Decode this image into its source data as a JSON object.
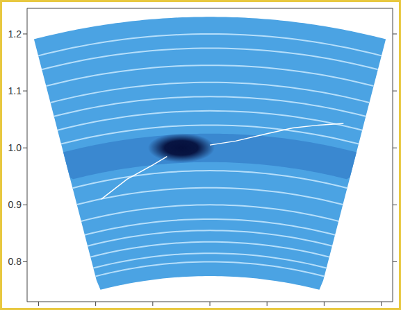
{
  "chart_data": {
    "type": "disk_map",
    "ylim": [
      0.73,
      1.245
    ],
    "yticks": [
      0.8,
      0.9,
      {
        "value": 1.0,
        "label": "1.0"
      },
      1.1,
      1.2
    ],
    "xlim": [
      -0.32,
      0.32
    ],
    "xticks": [
      -0.3,
      -0.2,
      -0.1,
      0,
      0.1,
      0.2,
      0.3
    ],
    "tick_labels": "y",
    "color": "#4ba3e3",
    "wedge": {
      "r_inner": 0.775,
      "r_outer": 1.23,
      "half_angle_deg": 14.5
    },
    "gap": {
      "r_inner": 0.975,
      "r_outer": 1.025,
      "color": "#3a88d0"
    },
    "rings": {
      "r": [
        0.8,
        0.815,
        0.835,
        0.855,
        0.875,
        0.9,
        0.93,
        0.96,
        1.04,
        1.065,
        1.09,
        1.115,
        1.145,
        1.175,
        1.2
      ],
      "color": "#b5defa"
    },
    "planet": {
      "x": -0.05,
      "y": 1.0,
      "color": "#050f3c"
    },
    "wake": {
      "color": "#ffffff",
      "series": [
        {
          "x": [
            -0.19,
            -0.145,
            -0.1,
            -0.075
          ],
          "y": [
            0.91,
            0.945,
            0.97,
            0.985
          ]
        },
        {
          "x": [
            0.0,
            0.045,
            0.1,
            0.145,
            0.19,
            0.234
          ],
          "y": [
            1.005,
            1.012,
            1.025,
            1.035,
            1.04,
            1.043
          ]
        }
      ]
    }
  }
}
